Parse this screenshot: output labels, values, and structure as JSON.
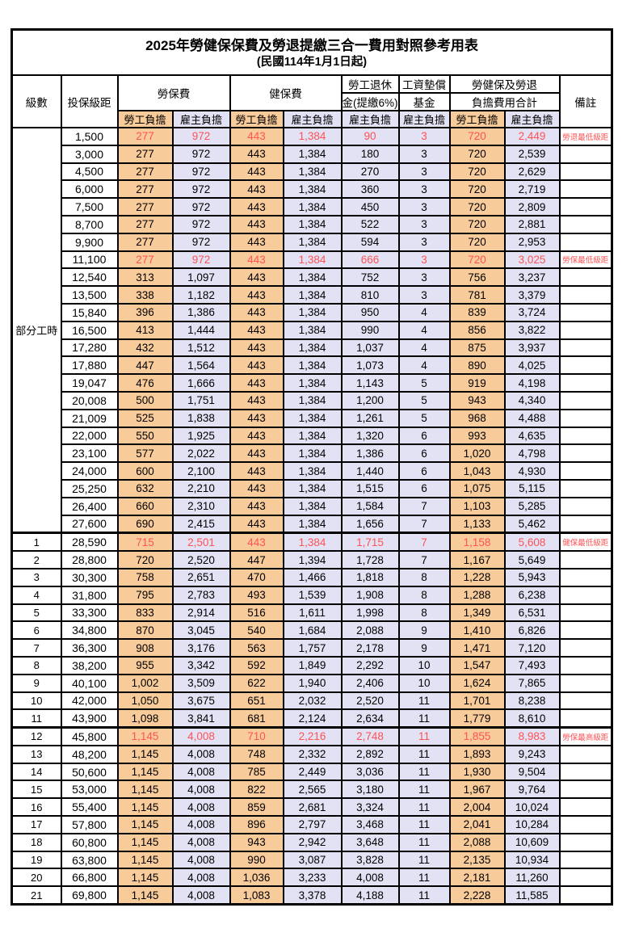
{
  "title": "2025年勞健保保費及勞退提繳三合一費用對照參考用表",
  "subtitle": "(民國114年1月1日起)",
  "colors": {
    "employee_bg": "#F8CB9B",
    "employer_bg": "#E2E2F4",
    "highlight_text": "#FF5355"
  },
  "header": {
    "level": "級數",
    "bracket": "投保級距",
    "labor_insurance": "勞保費",
    "health_insurance": "健保費",
    "pension_line1": "勞工退休",
    "pension_line2": "金(提繳6%)",
    "wage_fund_line1": "工資墊償",
    "wage_fund_line2": "基金",
    "total_line1": "勞健保及勞退",
    "total_line2": "負擔費用合計",
    "remark": "備註",
    "employee": "勞工負擔",
    "employer": "雇主負擔"
  },
  "part_time_label": "部分工時",
  "part_time_rowspan": 23,
  "rows": [
    {
      "level": "",
      "bracket": "1,500",
      "values": [
        "277",
        "972",
        "443",
        "1,384",
        "90",
        "3",
        "720",
        "2,449"
      ],
      "remark": "勞退最低級距",
      "highlight": true
    },
    {
      "level": "",
      "bracket": "3,000",
      "values": [
        "277",
        "972",
        "443",
        "1,384",
        "180",
        "3",
        "720",
        "2,539"
      ],
      "remark": ""
    },
    {
      "level": "",
      "bracket": "4,500",
      "values": [
        "277",
        "972",
        "443",
        "1,384",
        "270",
        "3",
        "720",
        "2,629"
      ],
      "remark": ""
    },
    {
      "level": "",
      "bracket": "6,000",
      "values": [
        "277",
        "972",
        "443",
        "1,384",
        "360",
        "3",
        "720",
        "2,719"
      ],
      "remark": ""
    },
    {
      "level": "",
      "bracket": "7,500",
      "values": [
        "277",
        "972",
        "443",
        "1,384",
        "450",
        "3",
        "720",
        "2,809"
      ],
      "remark": ""
    },
    {
      "level": "",
      "bracket": "8,700",
      "values": [
        "277",
        "972",
        "443",
        "1,384",
        "522",
        "3",
        "720",
        "2,881"
      ],
      "remark": ""
    },
    {
      "level": "",
      "bracket": "9,900",
      "values": [
        "277",
        "972",
        "443",
        "1,384",
        "594",
        "3",
        "720",
        "2,953"
      ],
      "remark": ""
    },
    {
      "level": "",
      "bracket": "11,100",
      "values": [
        "277",
        "972",
        "443",
        "1,384",
        "666",
        "3",
        "720",
        "3,025"
      ],
      "remark": "勞保最低級距",
      "highlight": true
    },
    {
      "level": "",
      "bracket": "12,540",
      "values": [
        "313",
        "1,097",
        "443",
        "1,384",
        "752",
        "3",
        "756",
        "3,237"
      ],
      "remark": ""
    },
    {
      "level": "",
      "bracket": "13,500",
      "values": [
        "338",
        "1,182",
        "443",
        "1,384",
        "810",
        "3",
        "781",
        "3,379"
      ],
      "remark": ""
    },
    {
      "level": "",
      "bracket": "15,840",
      "values": [
        "396",
        "1,386",
        "443",
        "1,384",
        "950",
        "4",
        "839",
        "3,724"
      ],
      "remark": ""
    },
    {
      "level": "",
      "bracket": "16,500",
      "values": [
        "413",
        "1,444",
        "443",
        "1,384",
        "990",
        "4",
        "856",
        "3,822"
      ],
      "remark": ""
    },
    {
      "level": "",
      "bracket": "17,280",
      "values": [
        "432",
        "1,512",
        "443",
        "1,384",
        "1,037",
        "4",
        "875",
        "3,937"
      ],
      "remark": ""
    },
    {
      "level": "",
      "bracket": "17,880",
      "values": [
        "447",
        "1,564",
        "443",
        "1,384",
        "1,073",
        "4",
        "890",
        "4,025"
      ],
      "remark": ""
    },
    {
      "level": "",
      "bracket": "19,047",
      "values": [
        "476",
        "1,666",
        "443",
        "1,384",
        "1,143",
        "5",
        "919",
        "4,198"
      ],
      "remark": ""
    },
    {
      "level": "",
      "bracket": "20,008",
      "values": [
        "500",
        "1,751",
        "443",
        "1,384",
        "1,200",
        "5",
        "943",
        "4,340"
      ],
      "remark": ""
    },
    {
      "level": "",
      "bracket": "21,009",
      "values": [
        "525",
        "1,838",
        "443",
        "1,384",
        "1,261",
        "5",
        "968",
        "4,488"
      ],
      "remark": ""
    },
    {
      "level": "",
      "bracket": "22,000",
      "values": [
        "550",
        "1,925",
        "443",
        "1,384",
        "1,320",
        "6",
        "993",
        "4,635"
      ],
      "remark": ""
    },
    {
      "level": "",
      "bracket": "23,100",
      "values": [
        "577",
        "2,022",
        "443",
        "1,384",
        "1,386",
        "6",
        "1,020",
        "4,798"
      ],
      "remark": ""
    },
    {
      "level": "",
      "bracket": "24,000",
      "values": [
        "600",
        "2,100",
        "443",
        "1,384",
        "1,440",
        "6",
        "1,043",
        "4,930"
      ],
      "remark": ""
    },
    {
      "level": "",
      "bracket": "25,250",
      "values": [
        "632",
        "2,210",
        "443",
        "1,384",
        "1,515",
        "6",
        "1,075",
        "5,115"
      ],
      "remark": ""
    },
    {
      "level": "",
      "bracket": "26,400",
      "values": [
        "660",
        "2,310",
        "443",
        "1,384",
        "1,584",
        "7",
        "1,103",
        "5,285"
      ],
      "remark": ""
    },
    {
      "level": "",
      "bracket": "27,600",
      "values": [
        "690",
        "2,415",
        "443",
        "1,384",
        "1,656",
        "7",
        "1,133",
        "5,462"
      ],
      "remark": ""
    },
    {
      "level": "1",
      "bracket": "28,590",
      "values": [
        "715",
        "2,501",
        "443",
        "1,384",
        "1,715",
        "7",
        "1,158",
        "5,608"
      ],
      "remark": "健保最低級距",
      "highlight": true,
      "thick_top": true
    },
    {
      "level": "2",
      "bracket": "28,800",
      "values": [
        "720",
        "2,520",
        "447",
        "1,394",
        "1,728",
        "7",
        "1,167",
        "5,649"
      ],
      "remark": ""
    },
    {
      "level": "3",
      "bracket": "30,300",
      "values": [
        "758",
        "2,651",
        "470",
        "1,466",
        "1,818",
        "8",
        "1,228",
        "5,943"
      ],
      "remark": ""
    },
    {
      "level": "4",
      "bracket": "31,800",
      "values": [
        "795",
        "2,783",
        "493",
        "1,539",
        "1,908",
        "8",
        "1,288",
        "6,238"
      ],
      "remark": ""
    },
    {
      "level": "5",
      "bracket": "33,300",
      "values": [
        "833",
        "2,914",
        "516",
        "1,611",
        "1,998",
        "8",
        "1,349",
        "6,531"
      ],
      "remark": ""
    },
    {
      "level": "6",
      "bracket": "34,800",
      "values": [
        "870",
        "3,045",
        "540",
        "1,684",
        "2,088",
        "9",
        "1,410",
        "6,826"
      ],
      "remark": ""
    },
    {
      "level": "7",
      "bracket": "36,300",
      "values": [
        "908",
        "3,176",
        "563",
        "1,757",
        "2,178",
        "9",
        "1,471",
        "7,120"
      ],
      "remark": ""
    },
    {
      "level": "8",
      "bracket": "38,200",
      "values": [
        "955",
        "3,342",
        "592",
        "1,849",
        "2,292",
        "10",
        "1,547",
        "7,493"
      ],
      "remark": ""
    },
    {
      "level": "9",
      "bracket": "40,100",
      "values": [
        "1,002",
        "3,509",
        "622",
        "1,940",
        "2,406",
        "10",
        "1,624",
        "7,865"
      ],
      "remark": ""
    },
    {
      "level": "10",
      "bracket": "42,000",
      "values": [
        "1,050",
        "3,675",
        "651",
        "2,032",
        "2,520",
        "11",
        "1,701",
        "8,238"
      ],
      "remark": ""
    },
    {
      "level": "11",
      "bracket": "43,900",
      "values": [
        "1,098",
        "3,841",
        "681",
        "2,124",
        "2,634",
        "11",
        "1,779",
        "8,610"
      ],
      "remark": ""
    },
    {
      "level": "12",
      "bracket": "45,800",
      "values": [
        "1,145",
        "4,008",
        "710",
        "2,216",
        "2,748",
        "11",
        "1,855",
        "8,983"
      ],
      "remark": "勞保最高級距",
      "highlight": true,
      "thick_top": true
    },
    {
      "level": "13",
      "bracket": "48,200",
      "values": [
        "1,145",
        "4,008",
        "748",
        "2,332",
        "2,892",
        "11",
        "1,893",
        "9,243"
      ],
      "remark": ""
    },
    {
      "level": "14",
      "bracket": "50,600",
      "values": [
        "1,145",
        "4,008",
        "785",
        "2,449",
        "3,036",
        "11",
        "1,930",
        "9,504"
      ],
      "remark": ""
    },
    {
      "level": "15",
      "bracket": "53,000",
      "values": [
        "1,145",
        "4,008",
        "822",
        "2,565",
        "3,180",
        "11",
        "1,967",
        "9,764"
      ],
      "remark": ""
    },
    {
      "level": "16",
      "bracket": "55,400",
      "values": [
        "1,145",
        "4,008",
        "859",
        "2,681",
        "3,324",
        "11",
        "2,004",
        "10,024"
      ],
      "remark": ""
    },
    {
      "level": "17",
      "bracket": "57,800",
      "values": [
        "1,145",
        "4,008",
        "896",
        "2,797",
        "3,468",
        "11",
        "2,041",
        "10,284"
      ],
      "remark": ""
    },
    {
      "level": "18",
      "bracket": "60,800",
      "values": [
        "1,145",
        "4,008",
        "943",
        "2,942",
        "3,648",
        "11",
        "2,088",
        "10,609"
      ],
      "remark": ""
    },
    {
      "level": "19",
      "bracket": "63,800",
      "values": [
        "1,145",
        "4,008",
        "990",
        "3,087",
        "3,828",
        "11",
        "2,135",
        "10,934"
      ],
      "remark": ""
    },
    {
      "level": "20",
      "bracket": "66,800",
      "values": [
        "1,145",
        "4,008",
        "1,036",
        "3,233",
        "4,008",
        "11",
        "2,181",
        "11,260"
      ],
      "remark": ""
    },
    {
      "level": "21",
      "bracket": "69,800",
      "values": [
        "1,145",
        "4,008",
        "1,083",
        "3,378",
        "4,188",
        "11",
        "2,228",
        "11,585"
      ],
      "remark": ""
    }
  ],
  "column_kinds": [
    "emp",
    "er",
    "emp",
    "er",
    "er",
    "er",
    "emp",
    "er"
  ]
}
